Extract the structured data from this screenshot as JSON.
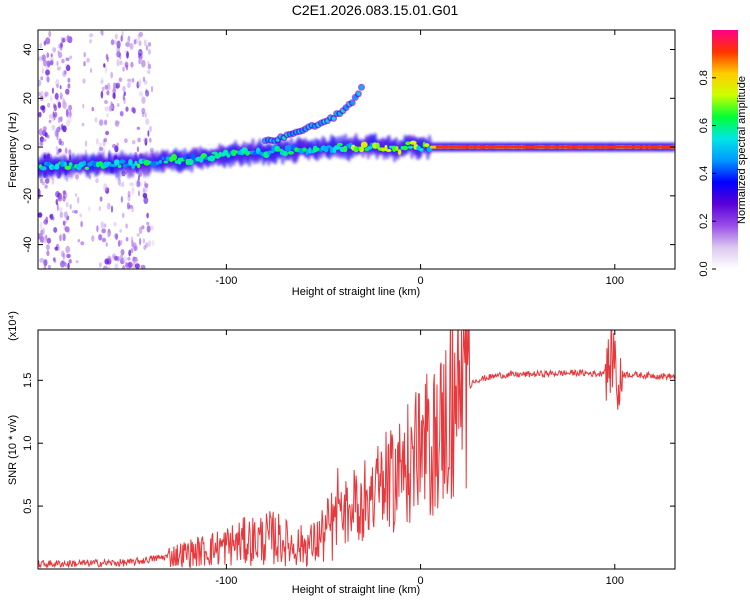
{
  "title": "C2E1.2026.083.15.01.G01",
  "chart_data": [
    {
      "type": "heatmap",
      "name": "spectrogram",
      "xlabel": "Height of straight line (km)",
      "ylabel": "Frequency (Hz)",
      "xlim": [
        -197,
        131
      ],
      "ylim": [
        -50,
        48
      ],
      "xticks": [
        -100,
        0,
        100
      ],
      "yticks": [
        -40,
        -20,
        0,
        20,
        40
      ],
      "colorbar": {
        "label": "Normalized spectral amplitude",
        "range": [
          0,
          1
        ],
        "ticks": [
          0.0,
          0.2,
          0.4,
          0.6,
          0.8
        ],
        "tick_labels": [
          "0.0",
          "0.2",
          "0.4",
          "0.6",
          "0.8"
        ],
        "colors": [
          "#ffffff",
          "#dcc8f0",
          "#9a4de8",
          "#5a00d8",
          "#0000ff",
          "#0099ff",
          "#00e6e6",
          "#00ff33",
          "#ccff00",
          "#ffcc00",
          "#ff3300",
          "#ff0088"
        ]
      },
      "main_line": [
        [
          -197,
          -8
        ],
        [
          -150,
          -7
        ],
        [
          -120,
          -5
        ],
        [
          -100,
          -3
        ],
        [
          -80,
          -2
        ],
        [
          -60,
          -1
        ],
        [
          -40,
          0
        ],
        [
          -20,
          0
        ],
        [
          -10,
          -1
        ],
        [
          -5,
          1
        ],
        [
          0,
          0
        ],
        [
          20,
          0
        ],
        [
          131,
          0
        ]
      ],
      "upper_branch": [
        [
          -80,
          2
        ],
        [
          -60,
          7
        ],
        [
          -45,
          12
        ],
        [
          -35,
          18
        ],
        [
          -30,
          25
        ]
      ],
      "noise_bands_x": [
        [
          -197,
          -180
        ],
        [
          -165,
          -140
        ]
      ]
    },
    {
      "type": "line",
      "name": "snr",
      "xlabel": "Height of straight line (km)",
      "ylabel": "SNR (10 * v/v)",
      "scale_label": "(x10⁴)",
      "xlim": [
        -197,
        131
      ],
      "ylim": [
        0,
        1.9
      ],
      "xticks": [
        -100,
        0,
        100
      ],
      "yticks": [
        0.5,
        1.0,
        1.5
      ],
      "ytick_labels": [
        "0.5",
        "1.0",
        "1.5"
      ],
      "color": "#e8383c",
      "trend": [
        [
          -197,
          0.04
        ],
        [
          -150,
          0.05
        ],
        [
          -130,
          0.1
        ],
        [
          -110,
          0.15
        ],
        [
          -90,
          0.22
        ],
        [
          -75,
          0.25
        ],
        [
          -65,
          0.18
        ],
        [
          -55,
          0.2
        ],
        [
          -45,
          0.35
        ],
        [
          -35,
          0.5
        ],
        [
          -25,
          0.6
        ],
        [
          -15,
          0.7
        ],
        [
          -5,
          0.85
        ],
        [
          5,
          0.95
        ],
        [
          12,
          1.15
        ],
        [
          20,
          1.38
        ],
        [
          28,
          1.5
        ],
        [
          40,
          1.54
        ],
        [
          60,
          1.55
        ],
        [
          80,
          1.56
        ],
        [
          92,
          1.55
        ],
        [
          97,
          1.6
        ],
        [
          100,
          1.72
        ],
        [
          102,
          1.35
        ],
        [
          104,
          1.55
        ],
        [
          115,
          1.54
        ],
        [
          131,
          1.53
        ]
      ]
    }
  ]
}
